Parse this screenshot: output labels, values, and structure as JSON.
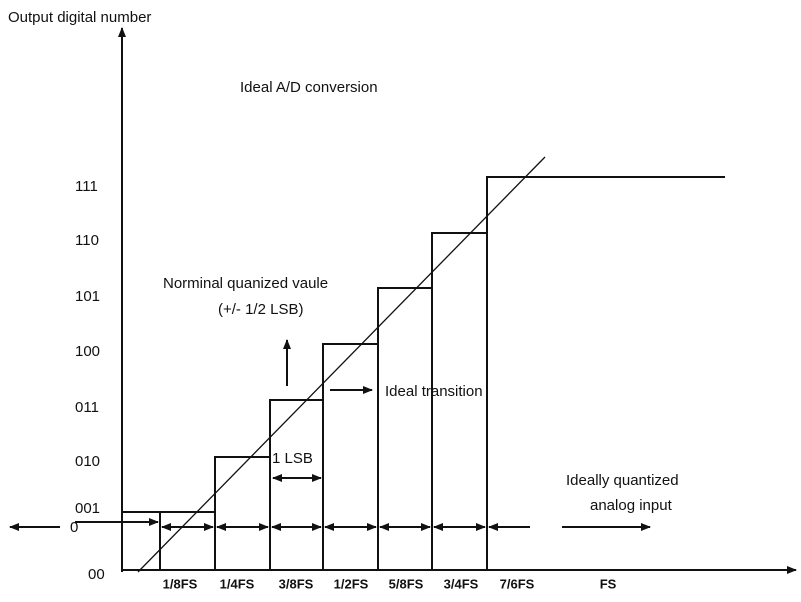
{
  "title": "Ideal A/D conversion",
  "y_axis": {
    "label": "Output digital number",
    "codes": [
      "111",
      "110",
      "101",
      "100",
      "011",
      "010",
      "001",
      "0",
      "00"
    ]
  },
  "x_axis": {
    "labels": [
      "1/8FS",
      "1/4FS",
      "3/8FS",
      "1/2FS",
      "5/8FS",
      "3/4FS",
      "7/6FS",
      "FS"
    ]
  },
  "annotations": {
    "nominal": "Norminal quanized vaule",
    "nominal_tolerance": "(+/- 1/2 LSB)",
    "transition": "Ideal transition",
    "lsb": "1 LSB",
    "analog_1": "Ideally quantized",
    "analog_2": "analog input"
  }
}
